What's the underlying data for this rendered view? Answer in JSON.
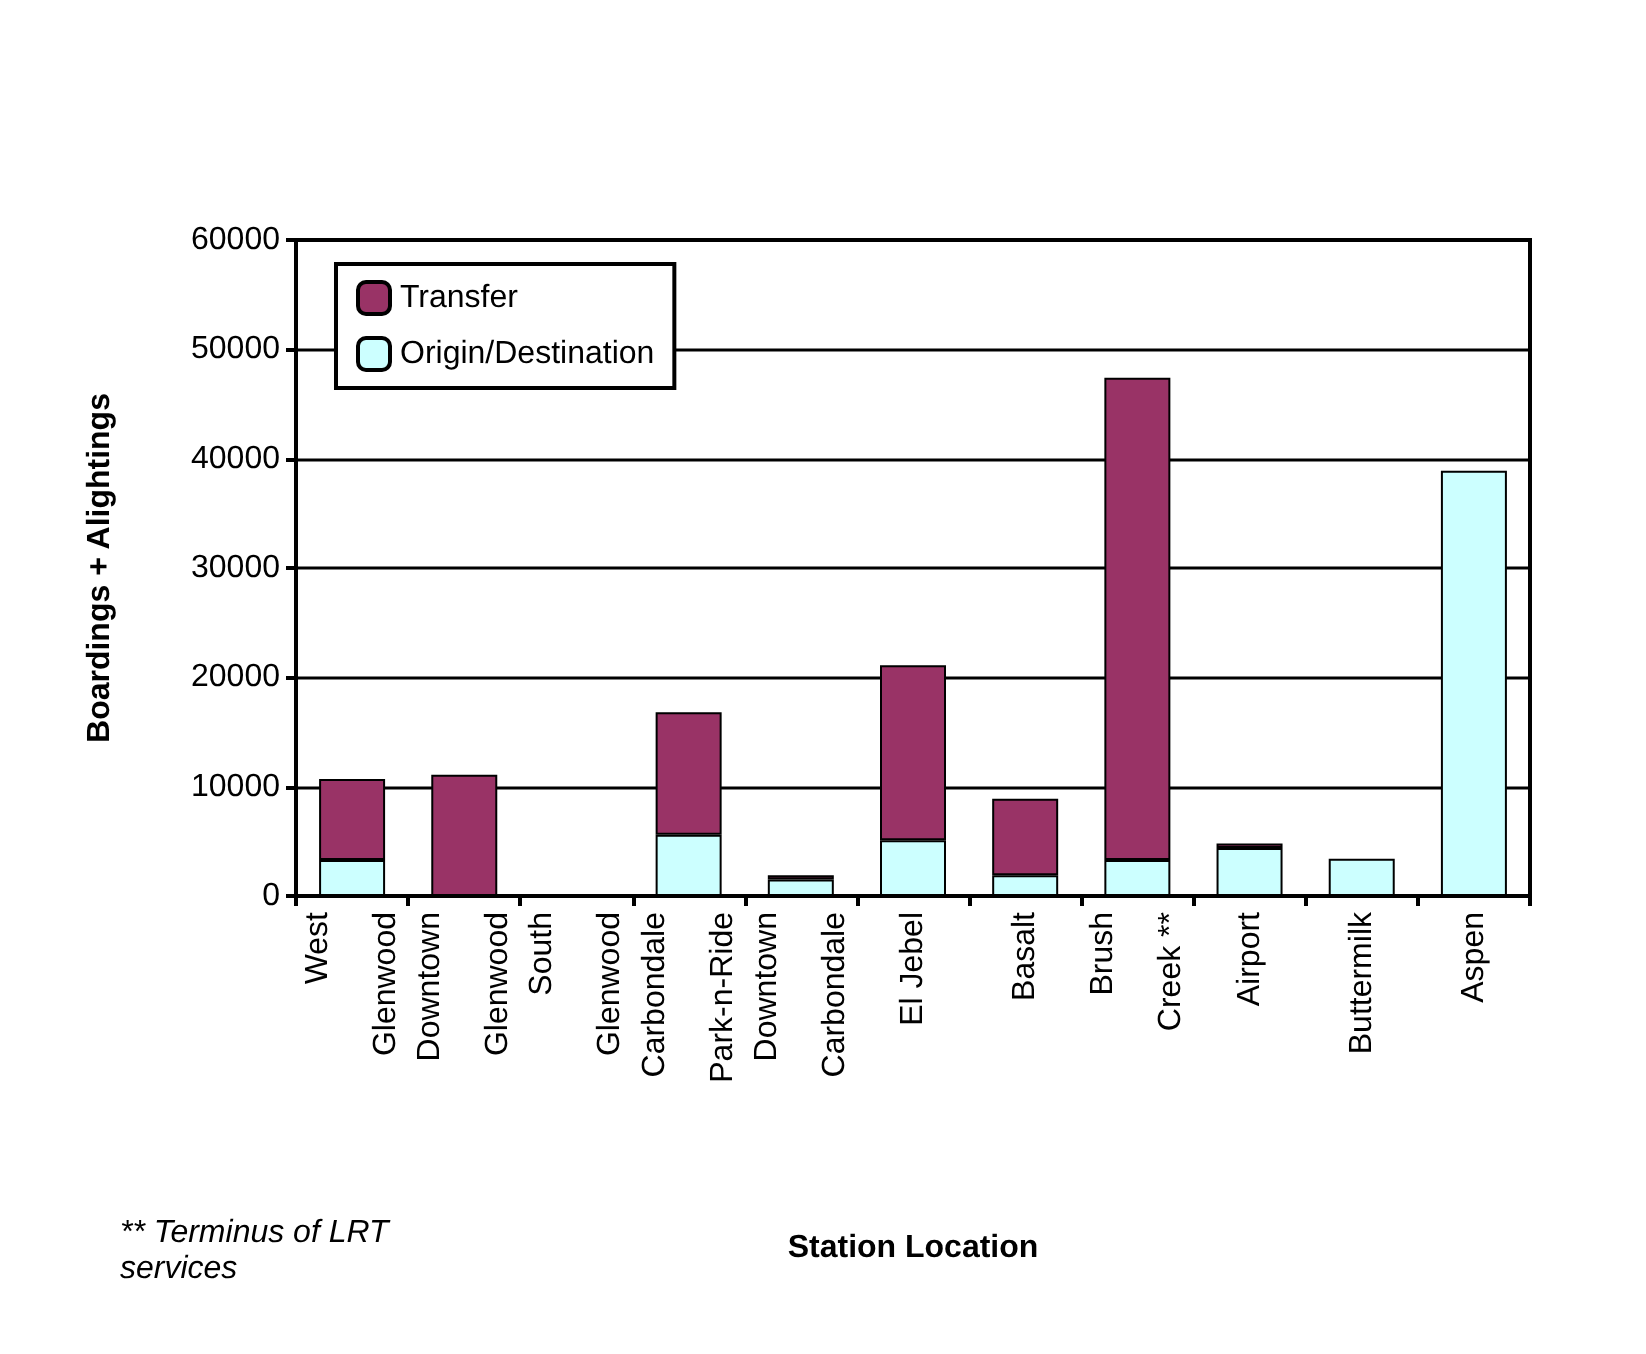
{
  "chart_data": {
    "type": "bar",
    "stacked": true,
    "xlabel": "Station Location",
    "ylabel": "Boardings + Alightings",
    "annotations": [
      "** Terminus of LRT services"
    ],
    "categories": [
      "West Glenwood",
      "Downtown Glenwood",
      "South Glenwood",
      "Carbondale Park-n-Ride",
      "Downtown Carbondale",
      "El Jebel",
      "Basalt",
      "Brush Creek **",
      "Airport",
      "Buttermilk",
      "Aspen"
    ],
    "series": [
      {
        "name": "Origin/Destination",
        "color": "#ccffff",
        "values": [
          3300,
          null,
          0,
          5600,
          1500,
          5100,
          1900,
          3300,
          4400,
          3400,
          38900
        ]
      },
      {
        "name": "Transfer",
        "color": "#993366",
        "values": [
          7400,
          11100,
          0,
          11200,
          400,
          16000,
          7000,
          44100,
          400,
          0,
          0
        ]
      }
    ],
    "ylim": [
      0,
      60000
    ],
    "yticks": [
      0,
      10000,
      20000,
      30000,
      40000,
      50000,
      60000
    ],
    "grid": "y",
    "legend": "top left"
  }
}
